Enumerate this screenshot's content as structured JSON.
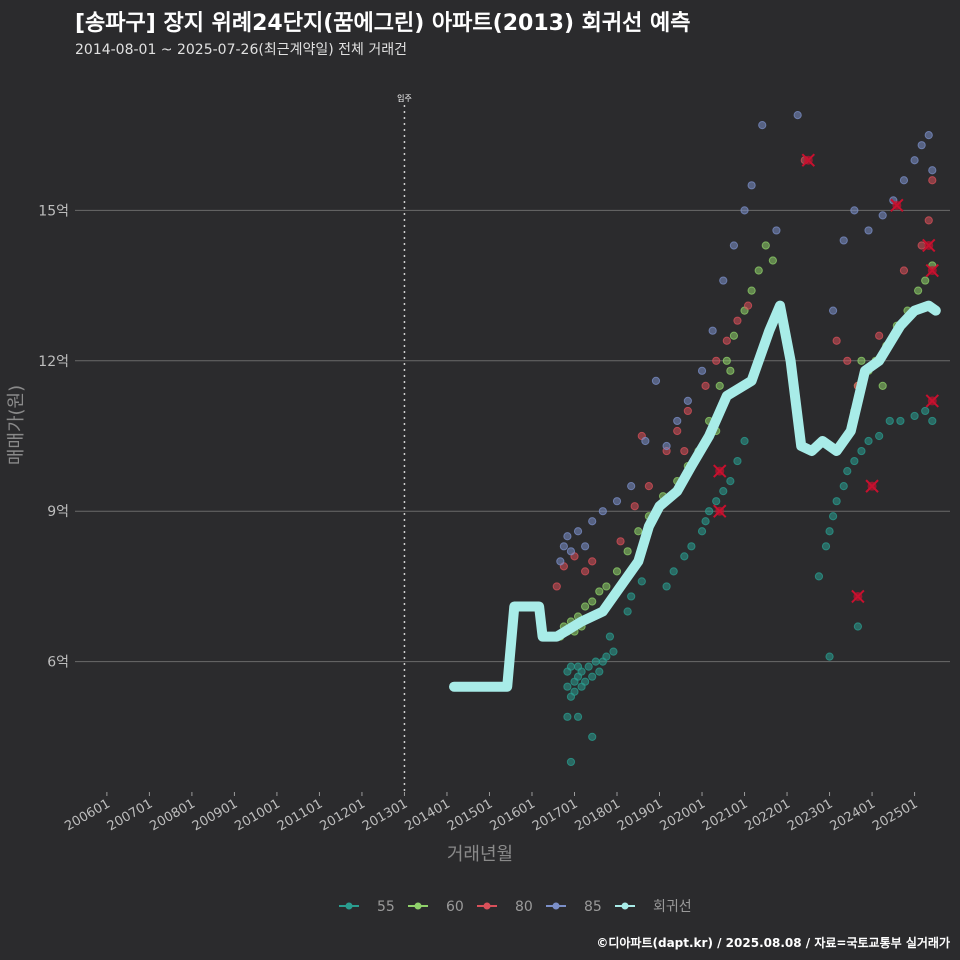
{
  "title": "[송파구] 장지 위례24단지(꿈에그린) 아파트(2013) 회귀선 예측",
  "subtitle": "2014-08-01 ~ 2025-07-26(최근계약일) 전체 거래건",
  "caption": "©디아파트(dapt.kr) / 2025.08.08 / 자료=국토교통부 실거래가",
  "colors": {
    "background": "#2b2b2d",
    "grid": "#6a6a6a",
    "s55": "#2a9d8f",
    "s60": "#8fd16a",
    "s80": "#d9505a",
    "s85": "#7b8fc8",
    "regression": "#a8ece8",
    "cancel_marker": "#c8102e"
  },
  "chart_data": {
    "type": "scatter",
    "xlabel": "거래년월",
    "ylabel": "매매가(원)",
    "xlim": [
      "2005-04",
      "2025-11"
    ],
    "ylim": [
      3.4,
      17.6
    ],
    "y_unit_suffix": "억",
    "y_ticks": [
      6,
      9,
      12,
      15
    ],
    "y_tick_labels": [
      "6억",
      "9억",
      "12억",
      "15억"
    ],
    "x_ticks": [
      "2006-01",
      "2007-01",
      "2008-01",
      "2009-01",
      "2010-01",
      "2011-01",
      "2012-01",
      "2013-01",
      "2014-01",
      "2015-01",
      "2016-01",
      "2017-01",
      "2018-01",
      "2019-01",
      "2020-01",
      "2021-01",
      "2022-01",
      "2023-01",
      "2024-01",
      "2025-01"
    ],
    "x_tick_labels": [
      "200601",
      "200701",
      "200801",
      "200901",
      "201001",
      "201101",
      "201201",
      "201301",
      "201401",
      "201501",
      "201601",
      "201701",
      "201801",
      "201901",
      "202001",
      "202101",
      "202201",
      "202301",
      "202401",
      "202501"
    ],
    "annotation": {
      "x": "2013-01",
      "label": "입주"
    },
    "legend": {
      "position": "bottom",
      "entries": [
        "55",
        "60",
        "80",
        "85",
        "회귀선"
      ]
    },
    "grid": true,
    "regression": {
      "name": "회귀선",
      "points": [
        [
          "2014-03",
          5.5
        ],
        [
          "2015-06",
          5.5
        ],
        [
          "2015-08",
          7.1
        ],
        [
          "2016-03",
          7.1
        ],
        [
          "2016-04",
          6.5
        ],
        [
          "2016-08",
          6.5
        ],
        [
          "2017-03",
          6.8
        ],
        [
          "2017-09",
          7.0
        ],
        [
          "2018-03",
          7.6
        ],
        [
          "2018-07",
          8.0
        ],
        [
          "2018-10",
          8.7
        ],
        [
          "2019-01",
          9.1
        ],
        [
          "2019-06",
          9.4
        ],
        [
          "2019-10",
          9.9
        ],
        [
          "2020-03",
          10.5
        ],
        [
          "2020-08",
          11.3
        ],
        [
          "2021-03",
          11.6
        ],
        [
          "2021-08",
          12.6
        ],
        [
          "2021-11",
          13.1
        ],
        [
          "2022-02",
          12.0
        ],
        [
          "2022-05",
          10.3
        ],
        [
          "2022-08",
          10.2
        ],
        [
          "2022-11",
          10.4
        ],
        [
          "2023-03",
          10.2
        ],
        [
          "2023-07",
          10.6
        ],
        [
          "2023-11",
          11.8
        ],
        [
          "2024-03",
          12.0
        ],
        [
          "2024-09",
          12.7
        ],
        [
          "2025-01",
          13.0
        ],
        [
          "2025-05",
          13.1
        ],
        [
          "2025-07",
          13.0
        ]
      ]
    },
    "series": [
      {
        "name": "55",
        "points": [
          [
            "2016-11",
            5.8
          ],
          [
            "2016-11",
            5.5
          ],
          [
            "2016-12",
            5.3
          ],
          [
            "2016-12",
            5.9
          ],
          [
            "2017-01",
            5.6
          ],
          [
            "2017-01",
            5.4
          ],
          [
            "2017-02",
            5.7
          ],
          [
            "2017-02",
            5.9
          ],
          [
            "2017-03",
            5.5
          ],
          [
            "2017-03",
            5.8
          ],
          [
            "2017-04",
            5.6
          ],
          [
            "2017-05",
            5.9
          ],
          [
            "2017-06",
            5.7
          ],
          [
            "2017-07",
            6.0
          ],
          [
            "2017-08",
            5.8
          ],
          [
            "2017-09",
            6.0
          ],
          [
            "2017-10",
            6.1
          ],
          [
            "2017-11",
            6.5
          ],
          [
            "2017-12",
            6.2
          ],
          [
            "2016-11",
            4.9
          ],
          [
            "2017-02",
            4.9
          ],
          [
            "2016-12",
            4.0
          ],
          [
            "2017-06",
            4.5
          ],
          [
            "2018-04",
            7.0
          ],
          [
            "2018-05",
            7.3
          ],
          [
            "2018-08",
            7.6
          ],
          [
            "2019-03",
            7.5
          ],
          [
            "2019-05",
            7.8
          ],
          [
            "2019-08",
            8.1
          ],
          [
            "2019-10",
            8.3
          ],
          [
            "2020-01",
            8.6
          ],
          [
            "2020-02",
            8.8
          ],
          [
            "2020-03",
            9.0
          ],
          [
            "2020-05",
            9.2
          ],
          [
            "2020-07",
            9.4
          ],
          [
            "2020-09",
            9.6
          ],
          [
            "2020-11",
            10.0
          ],
          [
            "2021-01",
            10.4
          ],
          [
            "2022-12",
            8.3
          ],
          [
            "2023-01",
            8.6
          ],
          [
            "2023-02",
            8.9
          ],
          [
            "2023-03",
            9.2
          ],
          [
            "2023-05",
            9.5
          ],
          [
            "2023-06",
            9.8
          ],
          [
            "2023-08",
            10.0
          ],
          [
            "2023-10",
            10.2
          ],
          [
            "2023-12",
            10.4
          ],
          [
            "2024-03",
            10.5
          ],
          [
            "2024-06",
            10.8
          ],
          [
            "2024-09",
            10.8
          ],
          [
            "2025-01",
            10.9
          ],
          [
            "2025-04",
            11.0
          ],
          [
            "2025-06",
            10.8
          ],
          [
            "2023-01",
            6.1
          ],
          [
            "2023-09",
            6.7
          ],
          [
            "2022-10",
            7.7
          ]
        ]
      },
      {
        "name": "60",
        "points": [
          [
            "2016-09",
            6.5
          ],
          [
            "2016-10",
            6.7
          ],
          [
            "2016-11",
            6.6
          ],
          [
            "2016-12",
            6.8
          ],
          [
            "2017-01",
            6.6
          ],
          [
            "2017-02",
            6.9
          ],
          [
            "2017-03",
            6.7
          ],
          [
            "2017-04",
            7.1
          ],
          [
            "2017-06",
            7.2
          ],
          [
            "2017-08",
            7.4
          ],
          [
            "2017-10",
            7.5
          ],
          [
            "2018-01",
            7.8
          ],
          [
            "2018-04",
            8.2
          ],
          [
            "2018-07",
            8.6
          ],
          [
            "2018-10",
            8.9
          ],
          [
            "2019-02",
            9.3
          ],
          [
            "2019-06",
            9.6
          ],
          [
            "2019-09",
            9.9
          ],
          [
            "2019-12",
            10.2
          ],
          [
            "2020-03",
            10.8
          ],
          [
            "2020-06",
            11.5
          ],
          [
            "2020-08",
            12.0
          ],
          [
            "2020-10",
            12.5
          ],
          [
            "2021-01",
            13.0
          ],
          [
            "2021-03",
            13.4
          ],
          [
            "2021-05",
            13.8
          ],
          [
            "2021-07",
            14.3
          ],
          [
            "2021-09",
            14.0
          ],
          [
            "2020-09",
            11.8
          ],
          [
            "2020-05",
            10.6
          ],
          [
            "2023-09",
            11.5
          ],
          [
            "2023-10",
            12.0
          ],
          [
            "2023-12",
            11.8
          ],
          [
            "2024-02",
            12.0
          ],
          [
            "2024-05",
            12.3
          ],
          [
            "2024-08",
            12.7
          ],
          [
            "2024-11",
            13.0
          ],
          [
            "2025-02",
            13.4
          ],
          [
            "2025-04",
            13.6
          ],
          [
            "2025-06",
            13.9
          ],
          [
            "2023-08",
            11.0
          ],
          [
            "2024-04",
            11.5
          ]
        ]
      },
      {
        "name": "80",
        "points": [
          [
            "2016-08",
            7.5
          ],
          [
            "2016-10",
            7.9
          ],
          [
            "2017-01",
            8.1
          ],
          [
            "2017-04",
            7.8
          ],
          [
            "2017-06",
            8.0
          ],
          [
            "2018-02",
            8.4
          ],
          [
            "2018-06",
            9.1
          ],
          [
            "2018-10",
            9.5
          ],
          [
            "2019-03",
            10.2
          ],
          [
            "2019-06",
            10.6
          ],
          [
            "2019-09",
            11.0
          ],
          [
            "2020-02",
            11.5
          ],
          [
            "2020-05",
            12.0
          ],
          [
            "2020-08",
            12.4
          ],
          [
            "2020-11",
            12.8
          ],
          [
            "2021-02",
            13.1
          ],
          [
            "2022-06",
            16.0
          ],
          [
            "2023-03",
            12.4
          ],
          [
            "2023-06",
            12.0
          ],
          [
            "2023-09",
            11.5
          ],
          [
            "2024-03",
            12.5
          ],
          [
            "2024-10",
            13.8
          ],
          [
            "2025-03",
            14.3
          ],
          [
            "2025-05",
            14.8
          ],
          [
            "2025-06",
            15.6
          ],
          [
            "2018-08",
            10.5
          ],
          [
            "2019-08",
            10.2
          ]
        ]
      },
      {
        "name": "85",
        "points": [
          [
            "2016-09",
            8.0
          ],
          [
            "2016-10",
            8.3
          ],
          [
            "2016-11",
            8.5
          ],
          [
            "2016-12",
            8.2
          ],
          [
            "2017-02",
            8.6
          ],
          [
            "2017-04",
            8.3
          ],
          [
            "2017-06",
            8.8
          ],
          [
            "2017-09",
            9.0
          ],
          [
            "2018-01",
            9.2
          ],
          [
            "2018-05",
            9.5
          ],
          [
            "2018-09",
            10.4
          ],
          [
            "2019-03",
            10.3
          ],
          [
            "2019-06",
            10.8
          ],
          [
            "2019-09",
            11.2
          ],
          [
            "2020-01",
            11.8
          ],
          [
            "2020-04",
            12.6
          ],
          [
            "2020-07",
            13.6
          ],
          [
            "2020-10",
            14.3
          ],
          [
            "2021-01",
            15.0
          ],
          [
            "2021-03",
            15.5
          ],
          [
            "2021-06",
            16.7
          ],
          [
            "2021-10",
            14.6
          ],
          [
            "2022-04",
            16.9
          ],
          [
            "2023-02",
            13.0
          ],
          [
            "2023-05",
            14.4
          ],
          [
            "2023-08",
            15.0
          ],
          [
            "2023-12",
            14.6
          ],
          [
            "2024-04",
            14.9
          ],
          [
            "2024-07",
            15.2
          ],
          [
            "2024-10",
            15.6
          ],
          [
            "2025-01",
            16.0
          ],
          [
            "2025-03",
            16.3
          ],
          [
            "2025-05",
            16.5
          ],
          [
            "2025-06",
            15.8
          ],
          [
            "2018-12",
            11.6
          ]
        ]
      }
    ],
    "cancelled_deals": [
      [
        "2022-07",
        16.0
      ],
      [
        "2020-06",
        9.8
      ],
      [
        "2020-06",
        9.0
      ],
      [
        "2023-09",
        7.3
      ],
      [
        "2024-01",
        9.5
      ],
      [
        "2024-08",
        15.1
      ],
      [
        "2025-05",
        14.3
      ],
      [
        "2025-06",
        13.8
      ],
      [
        "2025-06",
        11.2
      ]
    ]
  }
}
